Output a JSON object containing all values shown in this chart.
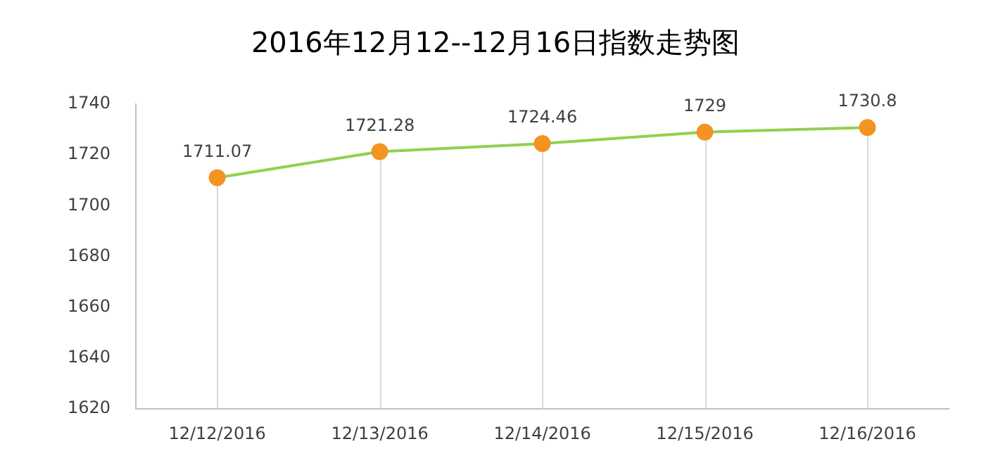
{
  "chart_data": {
    "type": "line",
    "title": "2016年12月12--12月16日指数走势图",
    "categories": [
      "12/12/2016",
      "12/13/2016",
      "12/14/2016",
      "12/15/2016",
      "12/16/2016"
    ],
    "series": [
      {
        "color": "#92d050",
        "colors": [
          "#f39322",
          "#f39322",
          "#f39322",
          "#f39322",
          "#f39322"
        ],
        "values": [
          1711.07,
          1721.28,
          1724.46,
          1729,
          1730.8
        ]
      }
    ],
    "marker": "circle",
    "ylim": [
      1620,
      1740
    ],
    "yticks": [
      1620,
      1640,
      1660,
      1680,
      1700,
      1720,
      1740
    ],
    "grid": "x",
    "legend": false,
    "data_labels": true
  }
}
